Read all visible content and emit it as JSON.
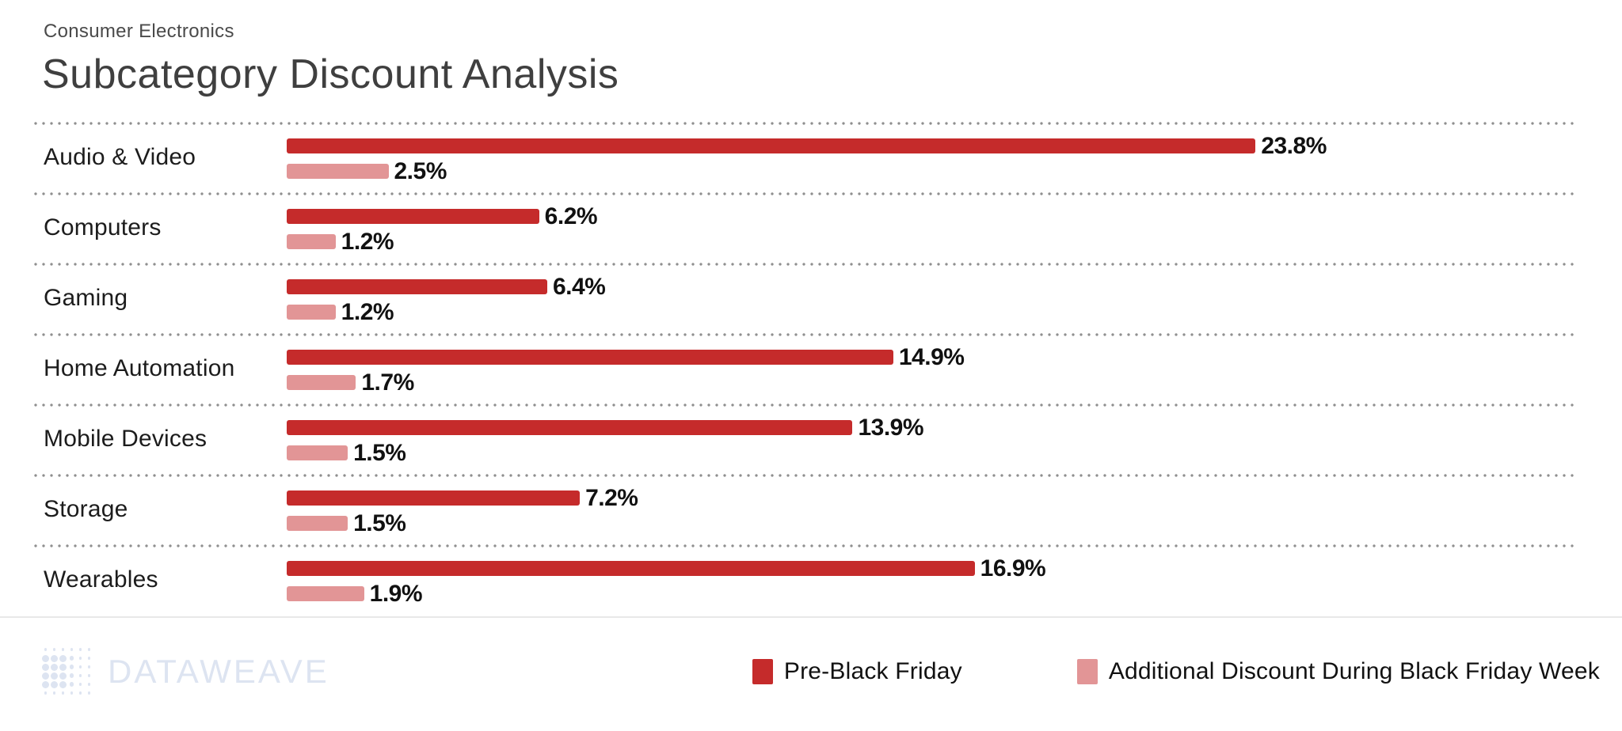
{
  "header": {
    "subtitle": "Consumer Electronics",
    "title": "Subcategory Discount Analysis"
  },
  "chart_data": {
    "type": "bar",
    "orientation": "horizontal",
    "title": "Subcategory Discount Analysis",
    "subtitle": "Consumer Electronics",
    "categories": [
      "Audio & Video",
      "Computers",
      "Gaming",
      "Home Automation",
      "Mobile Devices",
      "Storage",
      "Wearables"
    ],
    "series": [
      {
        "name": "Pre-Black Friday",
        "color": "#c52b2b",
        "values": [
          23.8,
          6.2,
          6.4,
          14.9,
          13.9,
          7.2,
          16.9
        ]
      },
      {
        "name": "Additional Discount During Black Friday Week",
        "color": "#e29596",
        "values": [
          2.5,
          1.2,
          1.2,
          1.7,
          1.5,
          1.5,
          1.9
        ]
      }
    ],
    "value_suffix": "%",
    "value_labels": "bold, at end of each bar",
    "xlim": [
      0,
      25
    ],
    "grid": "dotted horizontal separators above each category row",
    "legend_position": "bottom-right",
    "separator_color": "#8f8f8f",
    "footer_rule_color": "#e8e8e8"
  },
  "footer": {
    "logo_text": "DATAWEAVE",
    "logo_color": "#dde4f1"
  }
}
